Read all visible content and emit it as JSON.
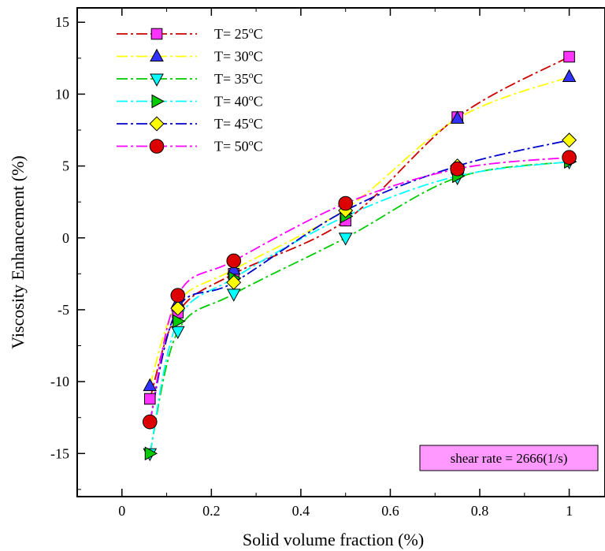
{
  "chart_data": {
    "type": "line",
    "xlabel": "Solid volume fraction (%)",
    "ylabel": "Viscosity Enhancement (%)",
    "xlim": [
      -0.1,
      1.08
    ],
    "ylim": [
      -18,
      16
    ],
    "xticks": [
      0,
      0.2,
      0.4,
      0.6,
      0.8,
      1
    ],
    "xtick_labels": [
      "0",
      "0.2",
      "0.4",
      "0.6",
      "0.8",
      "1"
    ],
    "yticks": [
      -15,
      -10,
      -5,
      0,
      5,
      10,
      15
    ],
    "ytick_labels": [
      "-15",
      "-10",
      "-5",
      "0",
      "5",
      "10",
      "15"
    ],
    "grid": false,
    "legend_position": "top-left",
    "x": [
      0.0625,
      0.125,
      0.25,
      0.5,
      0.75,
      1
    ],
    "series": [
      {
        "name_prefix": "T= 25",
        "name_sup": "o",
        "name_suffix": "C",
        "marker": "square",
        "color": "#cc0000",
        "marker_fill": "#ff33ff",
        "values": [
          -11.2,
          -5.2,
          -2.5,
          1.2,
          8.4,
          12.6
        ]
      },
      {
        "name_prefix": "T= 30",
        "name_sup": "o",
        "name_suffix": "C",
        "marker": "triangle-up",
        "color": "#ffff00",
        "marker_fill": "#3333ff",
        "values": [
          -10.3,
          -4.5,
          -2.2,
          2.0,
          8.3,
          11.2
        ]
      },
      {
        "name_prefix": "T= 35",
        "name_sup": "o",
        "name_suffix": "C",
        "marker": "triangle-down",
        "color": "#00cc00",
        "marker_fill": "#00ffff",
        "values": [
          -15.0,
          -6.5,
          -3.9,
          0.0,
          4.2,
          5.3
        ]
      },
      {
        "name_prefix": "T= 40",
        "name_sup": "o",
        "name_suffix": "C",
        "marker": "triangle-right",
        "color": "#00ffff",
        "marker_fill": "#00cc00",
        "values": [
          -15.0,
          -5.8,
          -2.8,
          1.5,
          4.3,
          5.3
        ]
      },
      {
        "name_prefix": "T= 45",
        "name_sup": "o",
        "name_suffix": "C",
        "marker": "diamond",
        "color": "#0000cc",
        "marker_fill": "#ffff00",
        "values": [
          -12.8,
          -4.9,
          -3.1,
          1.9,
          5.0,
          6.8
        ]
      },
      {
        "name_prefix": "T= 50",
        "name_sup": "o",
        "name_suffix": "C",
        "marker": "circle",
        "color": "#ff00ff",
        "marker_fill": "#dd0000",
        "values": [
          -12.8,
          -4.0,
          -1.6,
          2.4,
          4.8,
          5.6
        ]
      }
    ],
    "annotation": {
      "text": "shear rate = 2666(1/s)",
      "position": "bottom-right",
      "fill": "#ff99ff"
    }
  }
}
